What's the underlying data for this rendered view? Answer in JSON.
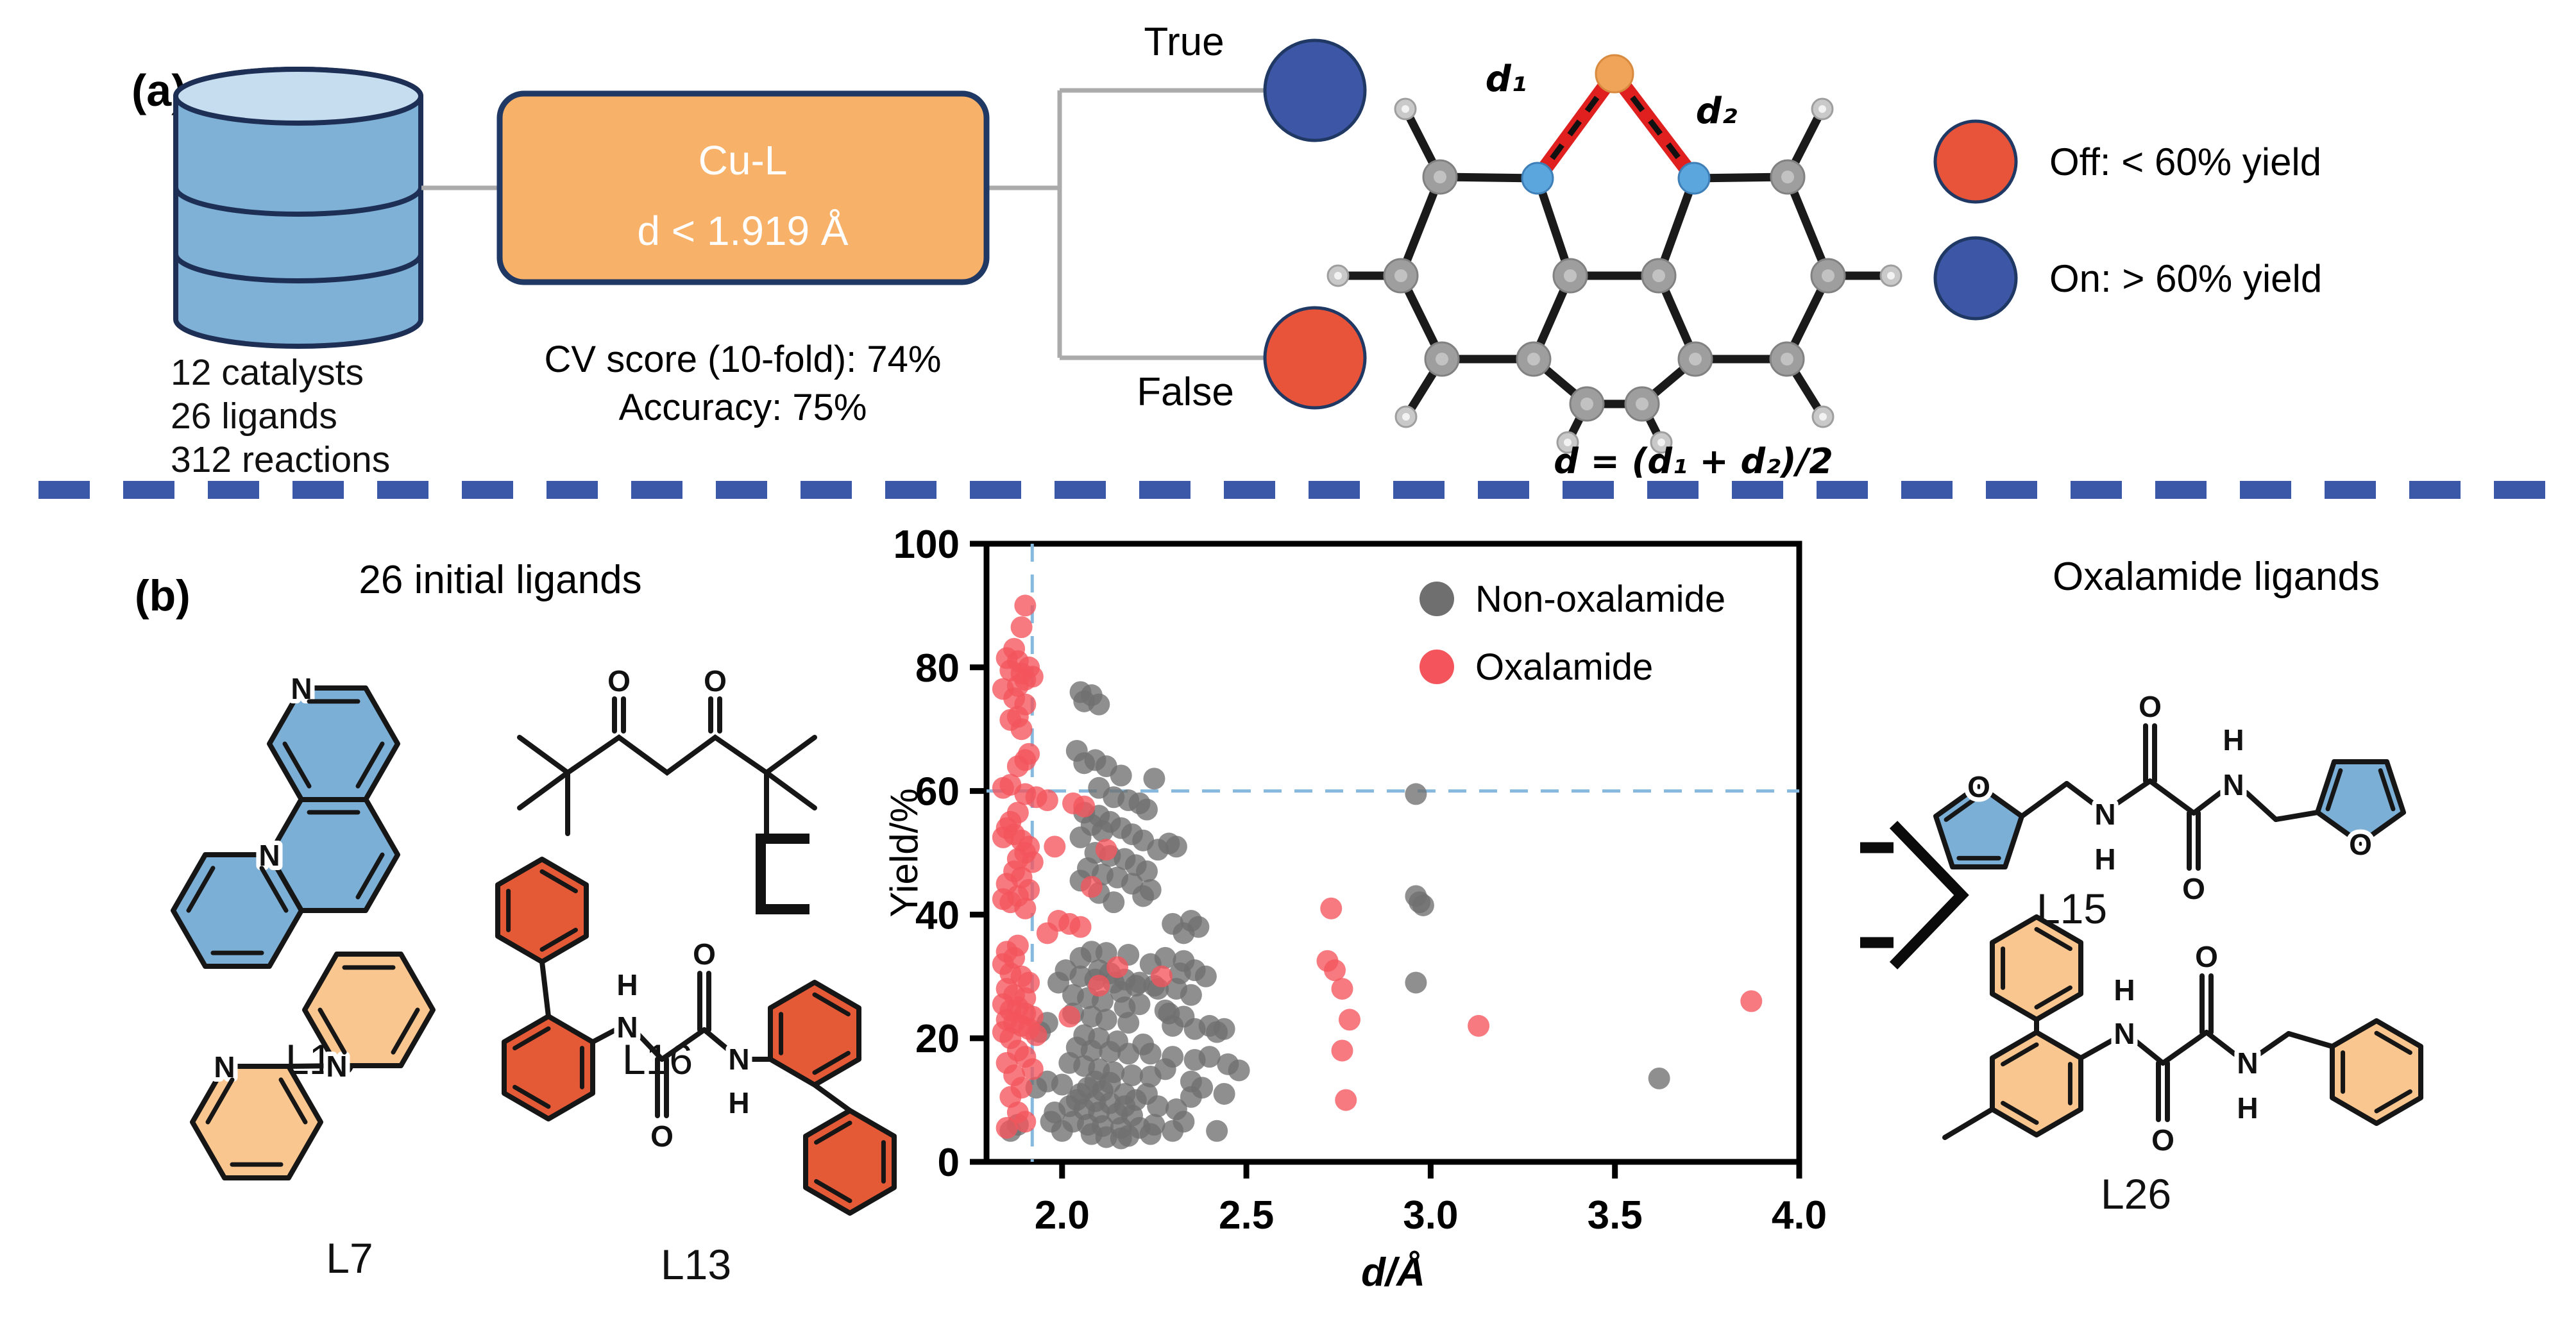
{
  "panel_a": {
    "label": "(a)",
    "database": {
      "lines": [
        "12 catalysts",
        "26 ligands",
        "312 reactions"
      ]
    },
    "decision_node": {
      "line1": "Cu-L",
      "line2": "d < 1.919 Å",
      "fill_color": "#F8B169",
      "border_color": "#1F3864"
    },
    "metrics": {
      "cv": "CV score (10-fold): 74%",
      "accuracy": "Accuracy: 75%"
    },
    "branches": {
      "true_label": "True",
      "false_label": "False",
      "true_color": "#3D56A6",
      "false_color": "#E8543A"
    },
    "molecule": {
      "d1": "d₁",
      "d2": "d₂",
      "formula": "d = (d₁ + d₂)/2"
    },
    "legend": {
      "off": "Off:  < 60% yield",
      "on": "On:  > 60% yield",
      "off_color": "#E8543A",
      "on_color": "#3D56A6"
    }
  },
  "panel_b": {
    "label": "(b)",
    "left_title": "26 initial ligands",
    "right_title": "Oxalamide ligands",
    "ligands_left": [
      "L10",
      "L16",
      "L7",
      "L13"
    ],
    "ligands_right": [
      "L15",
      "L26"
    ],
    "atoms": {
      "N": "N",
      "O": "O",
      "H": "H"
    }
  },
  "chart_data": {
    "type": "scatter",
    "title": "",
    "xlabel": "d/Å",
    "ylabel": "Yield/%",
    "xlim": [
      1.795,
      4.0
    ],
    "ylim": [
      0,
      100
    ],
    "xticks": [
      2.0,
      2.5,
      3.0,
      3.5,
      4.0
    ],
    "yticks": [
      0,
      20,
      40,
      60,
      80,
      100
    ],
    "grid": false,
    "legend_position": "upper-right",
    "thresholds": {
      "x": 1.919,
      "y": 60
    },
    "threshold_color": "#86B9DD",
    "series": [
      {
        "name": "Non-oxalamide",
        "color": "#6F6F6F",
        "points": [
          [
            2.05,
            76
          ],
          [
            2.08,
            75.5
          ],
          [
            2.06,
            74.5
          ],
          [
            2.1,
            74
          ],
          [
            2.04,
            66.5
          ],
          [
            2.09,
            65
          ],
          [
            2.06,
            64.5
          ],
          [
            2.12,
            64
          ],
          [
            2.16,
            62.5
          ],
          [
            2.25,
            62
          ],
          [
            2.1,
            60.5
          ],
          [
            2.96,
            59.5
          ],
          [
            2.14,
            59
          ],
          [
            2.18,
            58.5
          ],
          [
            2.21,
            58
          ],
          [
            2.23,
            57
          ],
          [
            2.06,
            56.5
          ],
          [
            2.1,
            56
          ],
          [
            2.13,
            55
          ],
          [
            2.08,
            54.5
          ],
          [
            2.16,
            54
          ],
          [
            2.11,
            53.5
          ],
          [
            2.19,
            53
          ],
          [
            2.05,
            52.5
          ],
          [
            2.22,
            52
          ],
          [
            2.29,
            51.5
          ],
          [
            2.31,
            51
          ],
          [
            2.26,
            50.5
          ],
          [
            2.09,
            50
          ],
          [
            2.13,
            49.5
          ],
          [
            2.17,
            49
          ],
          [
            2.2,
            48
          ],
          [
            2.07,
            47.5
          ],
          [
            2.23,
            47
          ],
          [
            2.11,
            46.5
          ],
          [
            2.15,
            46
          ],
          [
            2.05,
            45.5
          ],
          [
            2.19,
            45
          ],
          [
            2.24,
            44
          ],
          [
            2.1,
            43.5
          ],
          [
            2.96,
            43
          ],
          [
            2.22,
            43
          ],
          [
            2.97,
            42
          ],
          [
            2.14,
            42
          ],
          [
            2.98,
            41.5
          ],
          [
            2.35,
            39
          ],
          [
            2.3,
            38.5
          ],
          [
            2.37,
            38
          ],
          [
            2.33,
            37
          ],
          [
            2.08,
            34
          ],
          [
            2.12,
            33.8
          ],
          [
            2.18,
            33.5
          ],
          [
            2.28,
            33
          ],
          [
            2.05,
            33
          ],
          [
            2.33,
            32.5
          ],
          [
            2.24,
            32
          ],
          [
            2.36,
            31
          ],
          [
            2.01,
            31
          ],
          [
            2.1,
            31
          ],
          [
            2.13,
            30.5
          ],
          [
            2.32,
            30.5
          ],
          [
            2.05,
            30
          ],
          [
            2.39,
            30
          ],
          [
            2.09,
            29.5
          ],
          [
            2.17,
            29.5
          ],
          [
            2.14,
            29
          ],
          [
            2.96,
            29
          ],
          [
            2.21,
            29
          ],
          [
            1.99,
            29
          ],
          [
            2.2,
            28.5
          ],
          [
            2.25,
            28.5
          ],
          [
            2.26,
            28
          ],
          [
            2.31,
            28
          ],
          [
            2.16,
            27.5
          ],
          [
            2.35,
            27
          ],
          [
            2.03,
            27
          ],
          [
            2.07,
            26.5
          ],
          [
            2.11,
            26
          ],
          [
            2.21,
            25.5
          ],
          [
            2.17,
            25
          ],
          [
            2.28,
            24.5
          ],
          [
            2.29,
            24
          ],
          [
            2.03,
            24
          ],
          [
            2.08,
            23.5
          ],
          [
            2.33,
            23.5
          ],
          [
            2.12,
            23
          ],
          [
            1.96,
            22.5
          ],
          [
            2.18,
            22.5
          ],
          [
            2.3,
            22
          ],
          [
            2.4,
            22
          ],
          [
            2.36,
            21.5
          ],
          [
            2.44,
            21.5
          ],
          [
            2.42,
            21
          ],
          [
            1.94,
            21
          ],
          [
            2.06,
            20.5
          ],
          [
            2.1,
            20
          ],
          [
            2.15,
            19.5
          ],
          [
            2.22,
            19
          ],
          [
            2.04,
            18.5
          ],
          [
            2.08,
            18
          ],
          [
            2.13,
            17.8
          ],
          [
            2.18,
            17.5
          ],
          [
            2.24,
            17.5
          ],
          [
            2.4,
            17
          ],
          [
            2.3,
            17
          ],
          [
            2.36,
            16.5
          ],
          [
            2.02,
            16
          ],
          [
            2.06,
            15.5
          ],
          [
            2.45,
            15.8
          ],
          [
            2.1,
            15
          ],
          [
            2.28,
            15
          ],
          [
            2.48,
            14.8
          ],
          [
            2.14,
            14.5
          ],
          [
            2.19,
            14
          ],
          [
            2.24,
            13.8
          ],
          [
            3.62,
            13.5
          ],
          [
            2.09,
            13
          ],
          [
            2.35,
            13
          ],
          [
            1.96,
            13
          ],
          [
            2.13,
            12.8
          ],
          [
            2.38,
            12
          ],
          [
            1.93,
            12
          ],
          [
            2.07,
            12
          ],
          [
            2.0,
            12.5
          ],
          [
            2.11,
            11.5
          ],
          [
            2.17,
            11
          ],
          [
            2.23,
            11
          ],
          [
            2.44,
            11
          ],
          [
            2.05,
            11
          ],
          [
            2.35,
            10.5
          ],
          [
            2.04,
            10
          ],
          [
            2.2,
            10
          ],
          [
            2.09,
            9.8
          ],
          [
            2.13,
            9.5
          ],
          [
            2.17,
            9
          ],
          [
            2.26,
            9
          ],
          [
            2.02,
            9
          ],
          [
            2.31,
            8.5
          ],
          [
            1.98,
            8
          ],
          [
            2.06,
            8.5
          ],
          [
            2.1,
            8
          ],
          [
            2.15,
            7.8
          ],
          [
            2.19,
            7.5
          ],
          [
            1.97,
            6.5
          ],
          [
            2.03,
            6.5
          ],
          [
            2.33,
            6.5
          ],
          [
            2.25,
            6
          ],
          [
            1.88,
            6
          ],
          [
            2.07,
            6
          ],
          [
            2.11,
            5.8
          ],
          [
            2.16,
            5.5
          ],
          [
            2.21,
            5.5
          ],
          [
            2.3,
            5
          ],
          [
            2.42,
            5
          ],
          [
            2.0,
            5
          ],
          [
            1.86,
            5
          ],
          [
            2.08,
            4.5
          ],
          [
            2.24,
            4.5
          ],
          [
            2.18,
            4.2
          ],
          [
            2.12,
            4
          ],
          [
            2.16,
            3.8
          ]
        ]
      },
      {
        "name": "Oxalamide",
        "color": "#F4555C",
        "points": [
          [
            1.9,
            90
          ],
          [
            1.89,
            86.5
          ],
          [
            1.87,
            83
          ],
          [
            1.85,
            81.5
          ],
          [
            1.88,
            81
          ],
          [
            1.91,
            80
          ],
          [
            1.86,
            79.5
          ],
          [
            1.89,
            79
          ],
          [
            1.92,
            78.5
          ],
          [
            1.9,
            78
          ],
          [
            1.88,
            77
          ],
          [
            1.84,
            76.5
          ],
          [
            1.87,
            75
          ],
          [
            1.9,
            74
          ],
          [
            1.88,
            72
          ],
          [
            1.86,
            71.5
          ],
          [
            1.89,
            70
          ],
          [
            1.91,
            66
          ],
          [
            1.9,
            65
          ],
          [
            1.88,
            64
          ],
          [
            1.86,
            61
          ],
          [
            1.84,
            60.5
          ],
          [
            1.9,
            59.5
          ],
          [
            1.93,
            59
          ],
          [
            1.96,
            58.5
          ],
          [
            2.03,
            58
          ],
          [
            2.06,
            57.5
          ],
          [
            1.88,
            56.5
          ],
          [
            1.86,
            55
          ],
          [
            1.85,
            54
          ],
          [
            1.87,
            53
          ],
          [
            1.84,
            52.5
          ],
          [
            1.89,
            52
          ],
          [
            1.91,
            51
          ],
          [
            1.98,
            51
          ],
          [
            2.12,
            50.5
          ],
          [
            1.9,
            50
          ],
          [
            1.88,
            49
          ],
          [
            1.92,
            48.5
          ],
          [
            1.87,
            47
          ],
          [
            1.89,
            46
          ],
          [
            1.85,
            45
          ],
          [
            2.08,
            44.5
          ],
          [
            1.91,
            44
          ],
          [
            1.88,
            43
          ],
          [
            1.84,
            42.5
          ],
          [
            1.86,
            42
          ],
          [
            1.9,
            41
          ],
          [
            2.73,
            41
          ],
          [
            1.99,
            39
          ],
          [
            2.02,
            38.5
          ],
          [
            2.05,
            38
          ],
          [
            1.96,
            37
          ],
          [
            1.88,
            35
          ],
          [
            1.85,
            34
          ],
          [
            1.87,
            33
          ],
          [
            2.72,
            32.5
          ],
          [
            1.84,
            32
          ],
          [
            2.15,
            31.5
          ],
          [
            2.74,
            31
          ],
          [
            1.86,
            30.5
          ],
          [
            1.89,
            30
          ],
          [
            2.27,
            30
          ],
          [
            1.91,
            29
          ],
          [
            2.1,
            28.5
          ],
          [
            1.85,
            28
          ],
          [
            2.76,
            28
          ],
          [
            1.87,
            27
          ],
          [
            1.9,
            26.5
          ],
          [
            3.87,
            26
          ],
          [
            1.84,
            25.5
          ],
          [
            1.88,
            25
          ],
          [
            1.86,
            24.5
          ],
          [
            1.9,
            24
          ],
          [
            1.92,
            23.5
          ],
          [
            2.02,
            23.5
          ],
          [
            1.85,
            23
          ],
          [
            2.78,
            23
          ],
          [
            1.87,
            22.5
          ],
          [
            3.13,
            22
          ],
          [
            1.89,
            22
          ],
          [
            1.91,
            21.5
          ],
          [
            1.84,
            21
          ],
          [
            1.93,
            20.5
          ],
          [
            1.86,
            20
          ],
          [
            1.88,
            18
          ],
          [
            2.76,
            18
          ],
          [
            1.9,
            17
          ],
          [
            1.85,
            16
          ],
          [
            1.92,
            15
          ],
          [
            1.87,
            14
          ],
          [
            1.89,
            12
          ],
          [
            1.86,
            10.5
          ],
          [
            2.77,
            10
          ],
          [
            1.88,
            8
          ],
          [
            1.9,
            6.5
          ],
          [
            1.85,
            5.5
          ]
        ]
      }
    ]
  }
}
